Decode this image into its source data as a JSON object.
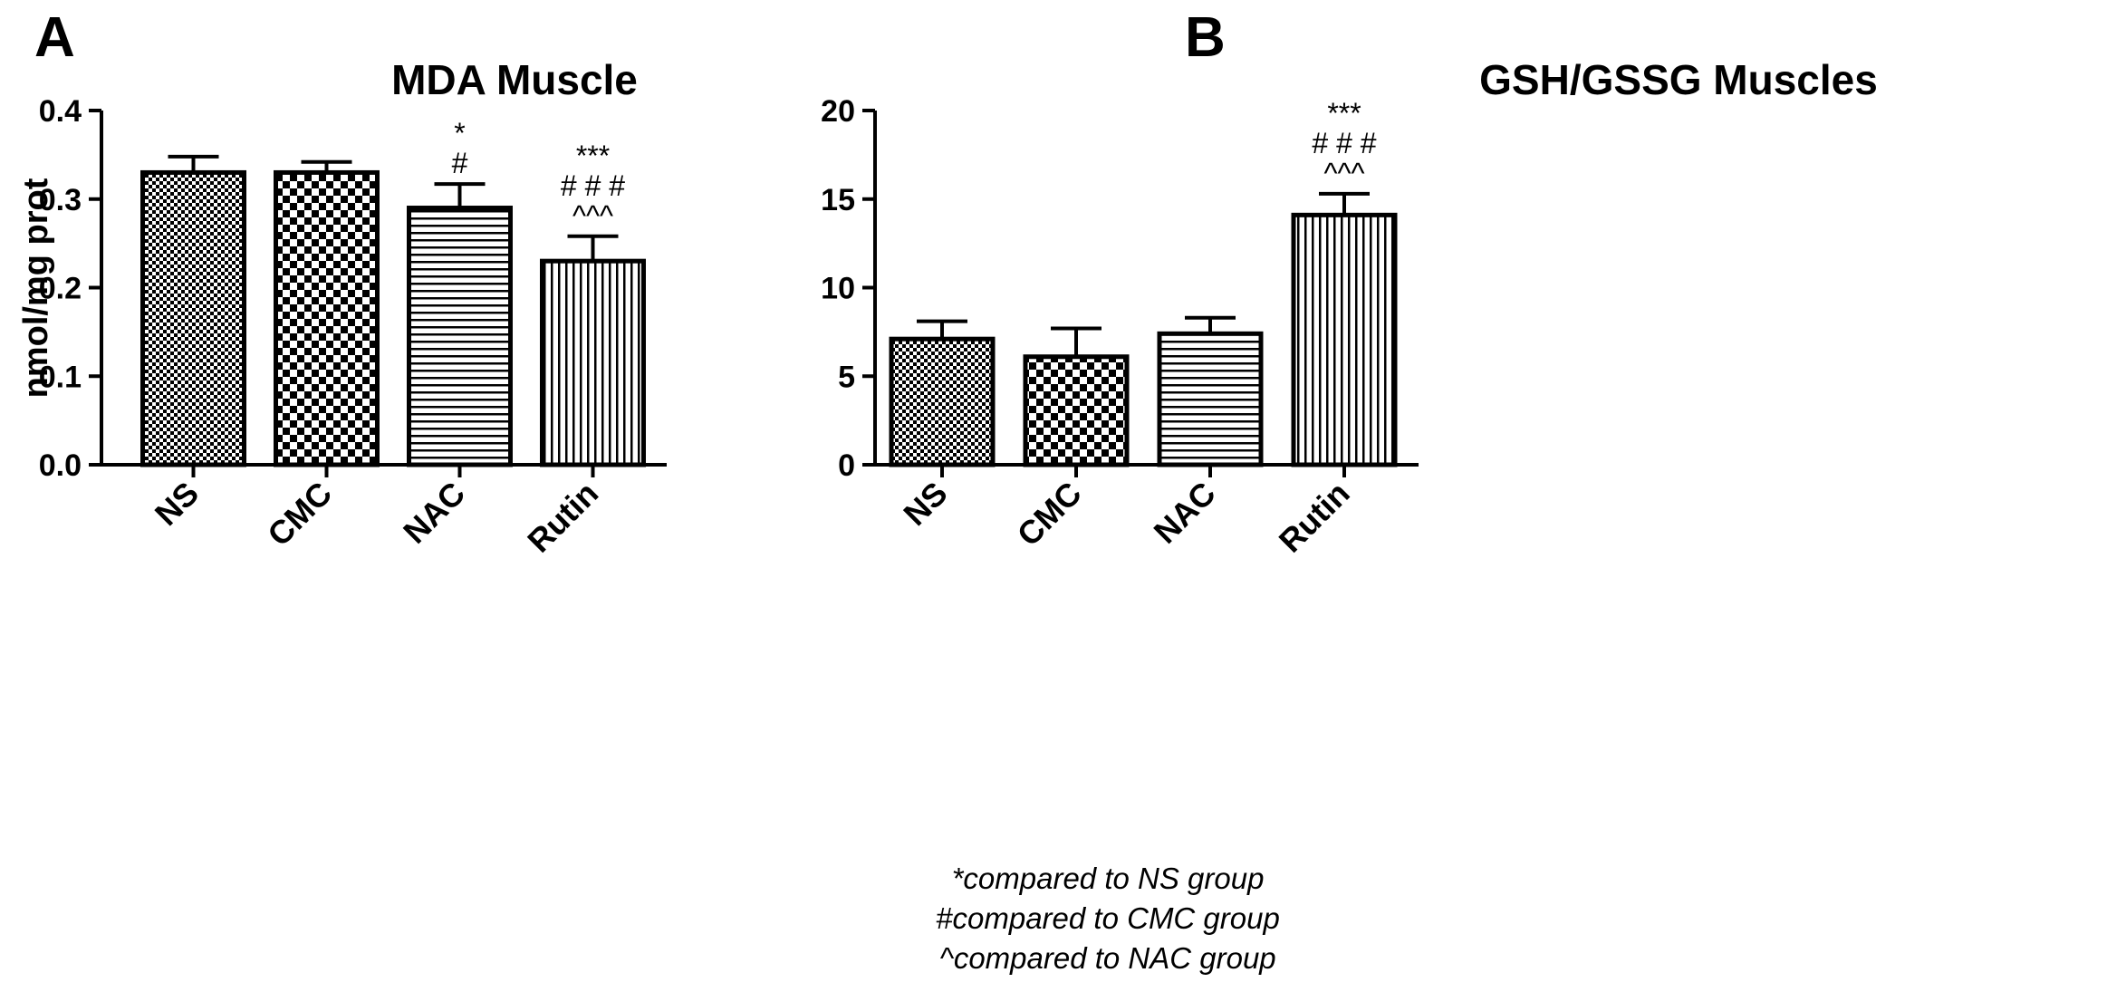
{
  "chart_data": [
    {
      "type": "bar",
      "panel_label": "A",
      "title": "MDA Muscle",
      "xlabel": "",
      "ylabel": "nmol/mg prot",
      "ylim": [
        0,
        0.4
      ],
      "yticks": [
        "0.0",
        "0.1",
        "0.2",
        "0.3",
        "0.4"
      ],
      "categories": [
        "NS",
        "CMC",
        "NAC",
        "Rutin"
      ],
      "values": [
        0.33,
        0.33,
        0.29,
        0.23
      ],
      "errors": [
        0.018,
        0.012,
        0.027,
        0.028
      ],
      "patterns": [
        "fine-check",
        "checker",
        "horizontal",
        "vertical"
      ],
      "annotations": [
        [],
        [],
        [
          "*",
          "#"
        ],
        [
          "***",
          "# # #",
          "^^^"
        ]
      ]
    },
    {
      "type": "bar",
      "panel_label": "B",
      "title": "GSH/GSSG Muscles",
      "xlabel": "",
      "ylabel": "",
      "ylim": [
        0,
        20
      ],
      "yticks": [
        "0",
        "5",
        "10",
        "15",
        "20"
      ],
      "categories": [
        "NS",
        "CMC",
        "NAC",
        "Rutin"
      ],
      "values": [
        7.1,
        6.1,
        7.4,
        14.1
      ],
      "errors": [
        1.0,
        1.6,
        0.9,
        1.2
      ],
      "patterns": [
        "fine-check",
        "checker",
        "horizontal",
        "vertical"
      ],
      "annotations": [
        [],
        [],
        [],
        [
          "***",
          "# # #",
          "^^^"
        ]
      ]
    }
  ],
  "legend": {
    "line1": "*compared to NS group",
    "line2": "#compared to CMC group",
    "line3": "^compared to NAC group"
  }
}
